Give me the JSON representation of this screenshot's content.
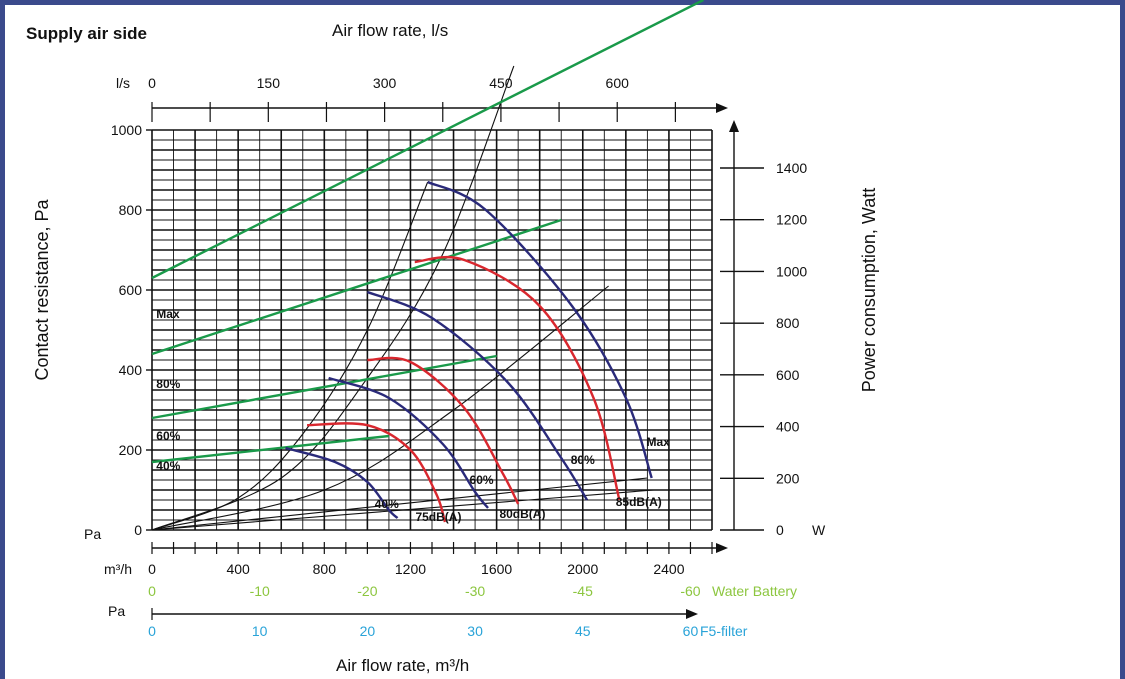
{
  "chart_data": {
    "type": "line",
    "section_title": "Supply air side",
    "top_title": "Air flow rate, l/s",
    "bottom_title": "Air flow rate, m³/h",
    "ylabel_left": "Contact resistance, Pa",
    "ylabel_right": "Power consumption, Watt",
    "grid": true,
    "units": {
      "ls": "l/s",
      "pa_left": "Pa",
      "w": "W",
      "m3h": "m³/h",
      "pa_lower": "Pa",
      "water_battery": "Water Battery",
      "fs_filter": "F5-filter"
    },
    "colors": {
      "fan": "#2a2a7a",
      "sound": "#d9272e",
      "power": "#1a9a4a",
      "system": "#111111",
      "water": "#8cc63f",
      "filter": "#29a3d8",
      "frame": "#3b4a8c"
    },
    "x_m3h": {
      "range": [
        0,
        2600
      ],
      "ticks": [
        "0",
        "400",
        "800",
        "1200",
        "1600",
        "2000",
        "2400"
      ],
      "tick_values": [
        0,
        400,
        800,
        1200,
        1600,
        2000,
        2400
      ]
    },
    "x_ls": {
      "ticks": [
        "0",
        "150",
        "300",
        "450",
        "600"
      ],
      "tick_values": [
        0,
        150,
        300,
        450,
        600
      ]
    },
    "y_pa": {
      "range": [
        0,
        1000
      ],
      "ticks": [
        "0",
        "200",
        "400",
        "600",
        "800",
        "1000"
      ],
      "tick_values": [
        0,
        200,
        400,
        600,
        800,
        1000
      ]
    },
    "y_watt": {
      "range": [
        0,
        1400
      ],
      "ticks": [
        "0",
        "200",
        "400",
        "600",
        "800",
        "1000",
        "1200",
        "1400"
      ],
      "tick_values": [
        0,
        200,
        400,
        600,
        800,
        1000,
        1200,
        1400
      ]
    },
    "water_battery": {
      "labels": [
        "0",
        "-10",
        "-20",
        "-30",
        "-45",
        "-60"
      ],
      "at_m3h": [
        0,
        500,
        1000,
        1500,
        2000,
        2500
      ]
    },
    "filter": {
      "labels": [
        "0",
        "10",
        "20",
        "30",
        "45",
        "60"
      ],
      "at_m3h": [
        0,
        500,
        1000,
        1500,
        2000,
        2500
      ]
    },
    "fan_curves": [
      {
        "label": "40%",
        "label_at": [
          1090,
          55
        ],
        "points": [
          [
            620,
            205
          ],
          [
            850,
            170
          ],
          [
            1000,
            120
          ],
          [
            1100,
            50
          ],
          [
            1140,
            30
          ]
        ]
      },
      {
        "label": "60%",
        "label_at": [
          1530,
          115
        ],
        "points": [
          [
            820,
            380
          ],
          [
            1100,
            330
          ],
          [
            1350,
            215
          ],
          [
            1500,
            95
          ],
          [
            1560,
            55
          ]
        ]
      },
      {
        "label": "80%",
        "label_at": [
          2000,
          165
        ],
        "points": [
          [
            1000,
            595
          ],
          [
            1300,
            530
          ],
          [
            1650,
            370
          ],
          [
            1900,
            180
          ],
          [
            2020,
            75
          ]
        ]
      },
      {
        "label": "Max",
        "label_at": [
          2350,
          210
        ],
        "points": [
          [
            1280,
            870
          ],
          [
            1550,
            800
          ],
          [
            1950,
            560
          ],
          [
            2200,
            330
          ],
          [
            2320,
            130
          ]
        ]
      }
    ],
    "sound_curves": [
      {
        "label": "75dB(A)",
        "label_at": [
          1330,
          22
        ],
        "points": [
          [
            720,
            262
          ],
          [
            1000,
            262
          ],
          [
            1200,
            200
          ],
          [
            1320,
            90
          ],
          [
            1360,
            20
          ]
        ]
      },
      {
        "label": "80dB(A)",
        "label_at": [
          1720,
          30
        ],
        "points": [
          [
            1000,
            425
          ],
          [
            1200,
            420
          ],
          [
            1450,
            305
          ],
          [
            1630,
            140
          ],
          [
            1700,
            65
          ]
        ]
      },
      {
        "label": "85dB(A)",
        "label_at": [
          2260,
          60
        ],
        "points": [
          [
            1220,
            670
          ],
          [
            1450,
            675
          ],
          [
            1800,
            560
          ],
          [
            2050,
            330
          ],
          [
            2170,
            75
          ]
        ]
      }
    ],
    "power_lines": [
      {
        "label": "Max",
        "label_at": [
          20,
          530
        ],
        "points": [
          [
            0,
            630
          ],
          [
            2560,
            1325
          ]
        ]
      },
      {
        "label": "80%",
        "label_at": [
          20,
          355
        ],
        "points": [
          [
            0,
            440
          ],
          [
            1900,
            775
          ]
        ]
      },
      {
        "label": "60%",
        "label_at": [
          20,
          225
        ],
        "points": [
          [
            0,
            280
          ],
          [
            1600,
            435
          ]
        ]
      },
      {
        "label": "40%",
        "label_at": [
          20,
          150
        ],
        "points": [
          [
            0,
            170
          ],
          [
            1100,
            235
          ]
        ]
      }
    ],
    "system_curves": [
      [
        [
          0,
          0
        ],
        [
          400,
          80
        ],
        [
          700,
          240
        ],
        [
          1000,
          500
        ],
        [
          1280,
          870
        ]
      ],
      [
        [
          0,
          0
        ],
        [
          600,
          130
        ],
        [
          1000,
          380
        ],
        [
          1350,
          690
        ],
        [
          1680,
          1160
        ]
      ],
      [
        [
          0,
          0
        ],
        [
          800,
          100
        ],
        [
          1400,
          300
        ],
        [
          2120,
          610
        ]
      ],
      [
        [
          0,
          0
        ],
        [
          2300,
          130
        ]
      ],
      [
        [
          0,
          0
        ],
        [
          2330,
          100
        ]
      ]
    ]
  }
}
